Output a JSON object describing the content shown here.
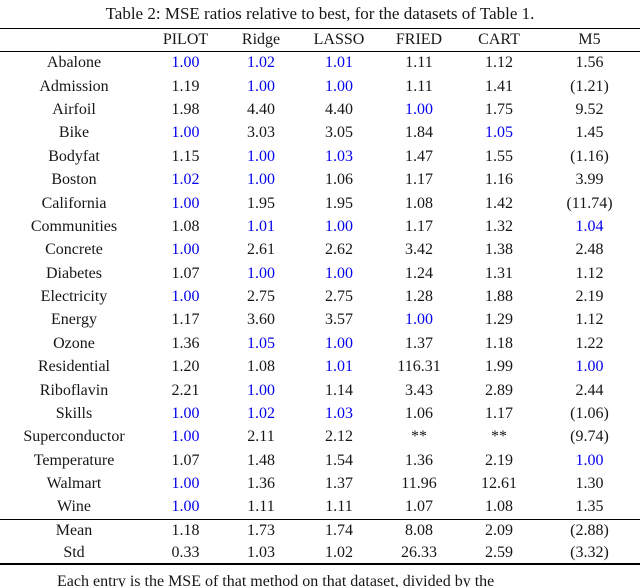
{
  "title": "Table 2: MSE ratios relative to best, for the datasets of Table 1.",
  "colors": {
    "best_highlight": "#0000ee",
    "text": "#161616"
  },
  "table": {
    "columns": [
      "",
      "PILOT",
      "Ridge",
      "LASSO",
      "FRIED",
      "CART",
      "M5"
    ],
    "rows": [
      {
        "label": "Abalone",
        "values": [
          "1.00",
          "1.02",
          "1.01",
          "1.11",
          "1.12",
          "1.56"
        ],
        "styles": [
          "best",
          "best",
          "best",
          "",
          "",
          ""
        ]
      },
      {
        "label": "Admission",
        "values": [
          "1.19",
          "1.00",
          "1.00",
          "1.11",
          "1.41",
          "(1.21)"
        ],
        "styles": [
          "",
          "best",
          "best",
          "",
          "",
          ""
        ]
      },
      {
        "label": "Airfoil",
        "values": [
          "1.98",
          "4.40",
          "4.40",
          "1.00",
          "1.75",
          "9.52"
        ],
        "styles": [
          "",
          "",
          "",
          "best",
          "",
          ""
        ]
      },
      {
        "label": "Bike",
        "values": [
          "1.00",
          "3.03",
          "3.05",
          "1.84",
          "1.05",
          "1.45"
        ],
        "styles": [
          "best",
          "",
          "",
          "",
          "best",
          ""
        ]
      },
      {
        "label": "Bodyfat",
        "values": [
          "1.15",
          "1.00",
          "1.03",
          "1.47",
          "1.55",
          "(1.16)"
        ],
        "styles": [
          "",
          "best",
          "best",
          "",
          "",
          ""
        ]
      },
      {
        "label": "Boston",
        "values": [
          "1.02",
          "1.00",
          "1.06",
          "1.17",
          "1.16",
          "3.99"
        ],
        "styles": [
          "best",
          "best",
          "",
          "",
          "",
          ""
        ]
      },
      {
        "label": "California",
        "values": [
          "1.00",
          "1.95",
          "1.95",
          "1.08",
          "1.42",
          "(11.74)"
        ],
        "styles": [
          "best",
          "",
          "",
          "",
          "",
          ""
        ]
      },
      {
        "label": "Communities",
        "values": [
          "1.08",
          "1.01",
          "1.00",
          "1.17",
          "1.32",
          "1.04"
        ],
        "styles": [
          "",
          "best",
          "best",
          "",
          "",
          "best"
        ]
      },
      {
        "label": "Concrete",
        "values": [
          "1.00",
          "2.61",
          "2.62",
          "3.42",
          "1.38",
          "2.48"
        ],
        "styles": [
          "best",
          "",
          "",
          "",
          "",
          ""
        ]
      },
      {
        "label": "Diabetes",
        "values": [
          "1.07",
          "1.00",
          "1.00",
          "1.24",
          "1.31",
          "1.12"
        ],
        "styles": [
          "",
          "best",
          "best",
          "",
          "",
          ""
        ]
      },
      {
        "label": "Electricity",
        "values": [
          "1.00",
          "2.75",
          "2.75",
          "1.28",
          "1.88",
          "2.19"
        ],
        "styles": [
          "best",
          "",
          "",
          "",
          "",
          ""
        ]
      },
      {
        "label": "Energy",
        "values": [
          "1.17",
          "3.60",
          "3.57",
          "1.00",
          "1.29",
          "1.12"
        ],
        "styles": [
          "",
          "",
          "",
          "best",
          "",
          ""
        ]
      },
      {
        "label": "Ozone",
        "values": [
          "1.36",
          "1.05",
          "1.00",
          "1.37",
          "1.18",
          "1.22"
        ],
        "styles": [
          "",
          "best",
          "best",
          "",
          "",
          ""
        ]
      },
      {
        "label": "Residential",
        "values": [
          "1.20",
          "1.08",
          "1.01",
          "116.31",
          "1.99",
          "1.00"
        ],
        "styles": [
          "",
          "",
          "best",
          "",
          "",
          "best"
        ]
      },
      {
        "label": "Riboflavin",
        "values": [
          "2.21",
          "1.00",
          "1.14",
          "3.43",
          "2.89",
          "2.44"
        ],
        "styles": [
          "",
          "best",
          "",
          "",
          "",
          ""
        ]
      },
      {
        "label": "Skills",
        "values": [
          "1.00",
          "1.02",
          "1.03",
          "1.06",
          "1.17",
          "(1.06)"
        ],
        "styles": [
          "best",
          "best",
          "best",
          "",
          "",
          ""
        ]
      },
      {
        "label": "Superconductor",
        "values": [
          "1.00",
          "2.11",
          "2.12",
          "**",
          "**",
          "(9.74)"
        ],
        "styles": [
          "best",
          "",
          "",
          "",
          "",
          ""
        ]
      },
      {
        "label": "Temperature",
        "values": [
          "1.07",
          "1.48",
          "1.54",
          "1.36",
          "2.19",
          "1.00"
        ],
        "styles": [
          "",
          "",
          "",
          "",
          "",
          "best"
        ]
      },
      {
        "label": "Walmart",
        "values": [
          "1.00",
          "1.36",
          "1.37",
          "11.96",
          "12.61",
          "1.30"
        ],
        "styles": [
          "best",
          "",
          "",
          "",
          "",
          ""
        ]
      },
      {
        "label": "Wine",
        "values": [
          "1.00",
          "1.11",
          "1.11",
          "1.07",
          "1.08",
          "1.35"
        ],
        "styles": [
          "best",
          "",
          "",
          "",
          "",
          ""
        ]
      }
    ],
    "summary_rows": [
      {
        "label": "Mean",
        "values": [
          "1.18",
          "1.73",
          "1.74",
          "8.08",
          "2.09",
          "(2.88)"
        ],
        "styles": [
          "bold",
          "",
          "",
          "",
          "",
          ""
        ]
      },
      {
        "label": "Std",
        "values": [
          "0.33",
          "1.03",
          "1.02",
          "26.33",
          "2.59",
          "(3.32)"
        ],
        "styles": [
          "bold",
          "",
          "",
          "",
          "",
          ""
        ]
      }
    ]
  },
  "footnote": "Each entry is the MSE of that method on that dataset, divided by the"
}
